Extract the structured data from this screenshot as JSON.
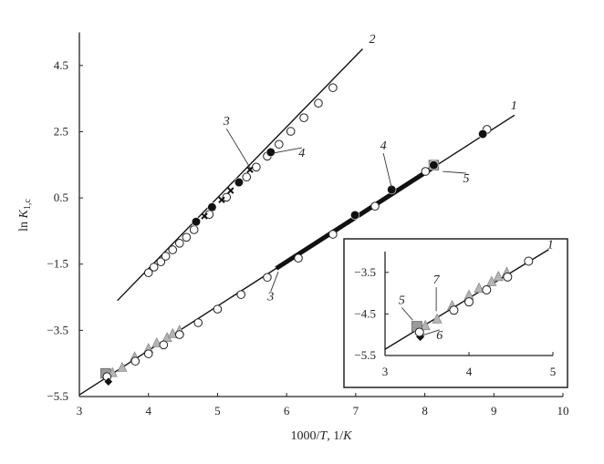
{
  "chart_data": {
    "type": "scatter",
    "title": "",
    "xlabel": {
      "pre": "1000/",
      "var": "T",
      "mid": ", 1/",
      "unit": "K"
    },
    "ylabel": {
      "pre": "ln ",
      "var": "K",
      "sub": "1,c"
    },
    "xlim": [
      3,
      10
    ],
    "ylim": [
      -5.5,
      5.5
    ],
    "xticks": [
      "3",
      "4",
      "5",
      "6",
      "7",
      "8",
      "9",
      "10"
    ],
    "yticks": [
      "4.5",
      "2.5",
      "0.5",
      "-1.5",
      "-3.5",
      "-5.5"
    ],
    "grid": false,
    "lines": [
      {
        "name": "1",
        "x": [
          3,
          9.3
        ],
        "y": [
          -5.45,
          3.0
        ],
        "width": "thin"
      },
      {
        "name": "2",
        "x": [
          3.55,
          7.1
        ],
        "y": [
          -2.6,
          5.0
        ],
        "width": "thin"
      },
      {
        "name": "3",
        "x": [
          5.85,
          8.1
        ],
        "y": [
          -1.63,
          1.39
        ],
        "width": "bold"
      }
    ],
    "series": [
      {
        "marker": "open-circle",
        "x": [
          4.0,
          4.08,
          4.18,
          4.25,
          4.35,
          4.45,
          4.55,
          4.66,
          4.88,
          5.13,
          5.42,
          5.56,
          5.72,
          5.89,
          6.06,
          6.25,
          6.46,
          6.67
        ],
        "y": [
          -1.76,
          -1.59,
          -1.43,
          -1.26,
          -1.07,
          -0.87,
          -0.69,
          -0.46,
          0.0,
          0.52,
          1.13,
          1.43,
          1.76,
          2.12,
          2.51,
          2.92,
          3.36,
          3.83
        ]
      },
      {
        "marker": "cross",
        "x": [
          4.81,
          5.06,
          5.19,
          5.47
        ],
        "y": [
          -0.05,
          0.44,
          0.72,
          1.35
        ]
      },
      {
        "marker": "filled-circle",
        "x": [
          4.69,
          4.92,
          5.31,
          5.77
        ],
        "y": [
          -0.22,
          0.22,
          0.97,
          1.88
        ]
      },
      {
        "marker": "square",
        "x": [
          3.38,
          8.13
        ],
        "y": [
          -4.8,
          1.49
        ]
      },
      {
        "marker": "triangle",
        "x": [
          3.48,
          3.62,
          3.8,
          4.0,
          4.12,
          4.27,
          4.35,
          4.45
        ],
        "y": [
          -4.78,
          -4.62,
          -4.3,
          -4.05,
          -3.88,
          -3.72,
          -3.6,
          -3.5
        ]
      },
      {
        "marker": "open-circle",
        "x": [
          3.4,
          3.81,
          4.0,
          4.22,
          4.45,
          4.72,
          5.0,
          5.34,
          5.72,
          6.17,
          6.67,
          7.28,
          8.01,
          8.9
        ],
        "y": [
          -4.9,
          -4.43,
          -4.21,
          -3.94,
          -3.63,
          -3.27,
          -2.86,
          -2.42,
          -1.9,
          -1.32,
          -0.6,
          0.25,
          1.3,
          2.57
        ]
      },
      {
        "marker": "filled-circle",
        "x": [
          6.99,
          7.52,
          8.13,
          8.84
        ],
        "y": [
          -0.02,
          0.75,
          1.49,
          2.43
        ]
      },
      {
        "marker": "diamond",
        "x": [
          3.42
        ],
        "y": [
          -5.05
        ]
      }
    ],
    "annotations": [
      {
        "text": "2",
        "x": 7.24,
        "y": 5.18
      },
      {
        "text": "1",
        "x": 9.29,
        "y": 3.17
      },
      {
        "text": "3",
        "x": 5.13,
        "y": 2.7,
        "tx": 5.48,
        "ty": 1.38
      },
      {
        "text": "4",
        "x": 6.22,
        "y": 1.74,
        "tx": 5.8,
        "ty": 1.85
      },
      {
        "text": "4",
        "x": 7.4,
        "y": 1.96,
        "tx": 7.52,
        "ty": 0.8
      },
      {
        "text": "5",
        "x": 8.6,
        "y": 0.97,
        "tx": 8.26,
        "ty": 1.3
      },
      {
        "text": "3",
        "x": 5.77,
        "y": -2.6,
        "tx": 5.88,
        "ty": -1.73
      }
    ],
    "inset": {
      "xlim": [
        3,
        5
      ],
      "ylim": [
        -5.5,
        -3.0
      ],
      "xticks": [
        "3",
        "4",
        "5"
      ],
      "yticks": [
        "-3.5",
        "-4.5",
        "-5.5"
      ],
      "lines": [
        {
          "name": "1",
          "x": [
            3,
            4.95
          ],
          "y": [
            -5.35,
            -2.95
          ],
          "width": "thin"
        }
      ],
      "series": [
        {
          "marker": "triangle",
          "x": [
            3.48,
            3.62,
            3.8,
            4.0,
            4.12,
            4.27,
            4.35,
            4.45
          ],
          "y": [
            -4.78,
            -4.62,
            -4.3,
            -4.05,
            -3.88,
            -3.72,
            -3.6,
            -3.5
          ]
        },
        {
          "marker": "square",
          "x": [
            3.38
          ],
          "y": [
            -4.8
          ]
        },
        {
          "marker": "diamond",
          "x": [
            3.42
          ],
          "y": [
            -5.05
          ]
        },
        {
          "marker": "open-circle",
          "x": [
            3.41,
            3.82,
            4.0,
            4.21,
            4.46,
            4.71
          ],
          "y": [
            -4.94,
            -4.41,
            -4.21,
            -3.92,
            -3.61,
            -3.23
          ]
        }
      ],
      "annotations": [
        {
          "text": "1",
          "x": 4.97,
          "y": -2.92
        },
        {
          "text": "7",
          "x": 3.61,
          "y": -3.77,
          "tx": 3.61,
          "ty": -4.43
        },
        {
          "text": "5",
          "x": 3.2,
          "y": -4.26,
          "tx": 3.33,
          "ty": -4.65
        },
        {
          "text": "6",
          "x": 3.65,
          "y": -5.1,
          "tx": 3.44,
          "ty": -5.02
        }
      ]
    }
  }
}
